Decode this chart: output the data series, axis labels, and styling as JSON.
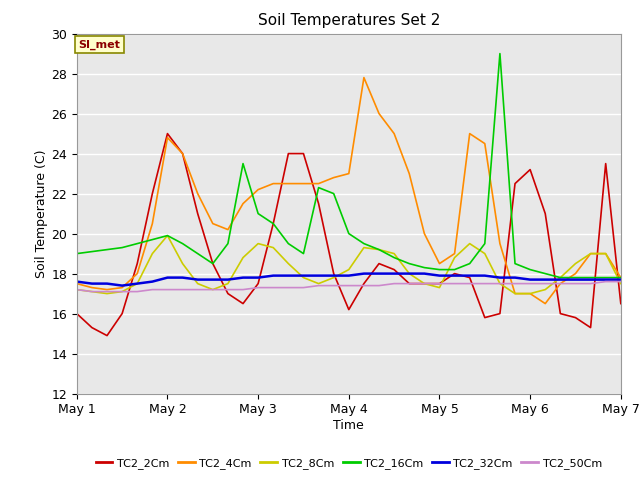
{
  "title": "Soil Temperatures Set 2",
  "xlabel": "Time",
  "ylabel": "Soil Temperature (C)",
  "ylim": [
    12,
    30
  ],
  "yticks": [
    12,
    14,
    16,
    18,
    20,
    22,
    24,
    26,
    28,
    30
  ],
  "xlim": [
    0,
    144
  ],
  "xtick_positions": [
    0,
    24,
    48,
    72,
    96,
    120,
    144
  ],
  "xtick_labels": [
    "May 1",
    "May 2",
    "May 3",
    "May 4",
    "May 5",
    "May 6",
    "May 7"
  ],
  "annotation_text": "SI_met",
  "fig_bg_color": "#ffffff",
  "plot_bg_color": "#e8e8e8",
  "grid_color": "#ffffff",
  "series": {
    "TC2_2Cm": {
      "color": "#cc0000",
      "lw": 1.2,
      "x": [
        0,
        4,
        8,
        12,
        16,
        20,
        24,
        28,
        32,
        36,
        40,
        44,
        48,
        52,
        56,
        60,
        64,
        68,
        72,
        76,
        80,
        84,
        88,
        92,
        96,
        100,
        104,
        108,
        112,
        116,
        120,
        124,
        128,
        132,
        136,
        140,
        144
      ],
      "y": [
        16.0,
        15.3,
        14.9,
        16.0,
        18.5,
        22.0,
        25.0,
        24.0,
        21.0,
        18.5,
        17.0,
        16.5,
        17.5,
        20.5,
        24.0,
        24.0,
        21.5,
        18.0,
        16.2,
        17.5,
        18.5,
        18.2,
        17.5,
        17.5,
        17.5,
        18.0,
        17.8,
        15.8,
        16.0,
        22.5,
        23.2,
        21.0,
        16.0,
        15.8,
        15.3,
        23.5,
        16.5
      ]
    },
    "TC2_4Cm": {
      "color": "#ff8c00",
      "lw": 1.2,
      "x": [
        0,
        4,
        8,
        12,
        16,
        20,
        24,
        28,
        32,
        36,
        40,
        44,
        48,
        52,
        56,
        60,
        64,
        68,
        72,
        76,
        80,
        84,
        88,
        92,
        96,
        100,
        104,
        108,
        112,
        116,
        120,
        124,
        128,
        132,
        136,
        140,
        144
      ],
      "y": [
        17.5,
        17.3,
        17.2,
        17.3,
        18.0,
        20.5,
        24.8,
        24.0,
        22.0,
        20.5,
        20.2,
        21.5,
        22.2,
        22.5,
        22.5,
        22.5,
        22.5,
        22.8,
        23.0,
        27.8,
        26.0,
        25.0,
        23.0,
        20.0,
        18.5,
        19.0,
        25.0,
        24.5,
        19.5,
        17.0,
        17.0,
        16.5,
        17.5,
        18.0,
        19.0,
        19.0,
        17.8
      ]
    },
    "TC2_8Cm": {
      "color": "#cccc00",
      "lw": 1.2,
      "x": [
        0,
        4,
        8,
        12,
        16,
        20,
        24,
        28,
        32,
        36,
        40,
        44,
        48,
        52,
        56,
        60,
        64,
        68,
        72,
        76,
        80,
        84,
        88,
        92,
        96,
        100,
        104,
        108,
        112,
        116,
        120,
        124,
        128,
        132,
        136,
        140,
        144
      ],
      "y": [
        17.2,
        17.1,
        17.0,
        17.1,
        17.5,
        19.0,
        19.9,
        18.5,
        17.5,
        17.2,
        17.5,
        18.8,
        19.5,
        19.3,
        18.5,
        17.8,
        17.5,
        17.8,
        18.2,
        19.3,
        19.2,
        19.0,
        18.0,
        17.5,
        17.3,
        18.8,
        19.5,
        19.0,
        17.5,
        17.0,
        17.0,
        17.2,
        17.8,
        18.5,
        19.0,
        19.0,
        17.5
      ]
    },
    "TC2_16Cm": {
      "color": "#00cc00",
      "lw": 1.2,
      "x": [
        0,
        4,
        8,
        12,
        16,
        20,
        24,
        28,
        32,
        36,
        40,
        44,
        48,
        52,
        56,
        60,
        64,
        68,
        72,
        76,
        80,
        84,
        88,
        92,
        96,
        100,
        104,
        108,
        112,
        116,
        120,
        124,
        128,
        132,
        136,
        140,
        144
      ],
      "y": [
        19.0,
        19.1,
        19.2,
        19.3,
        19.5,
        19.7,
        19.9,
        19.5,
        19.0,
        18.5,
        19.5,
        23.5,
        21.0,
        20.5,
        19.5,
        19.0,
        22.3,
        22.0,
        20.0,
        19.5,
        19.2,
        18.8,
        18.5,
        18.3,
        18.2,
        18.2,
        18.5,
        19.5,
        29.0,
        18.5,
        18.2,
        18.0,
        17.8,
        17.8,
        17.8,
        17.8,
        17.8
      ]
    },
    "TC2_32Cm": {
      "color": "#0000dd",
      "lw": 1.8,
      "x": [
        0,
        4,
        8,
        12,
        16,
        20,
        24,
        28,
        32,
        36,
        40,
        44,
        48,
        52,
        56,
        60,
        64,
        68,
        72,
        76,
        80,
        84,
        88,
        92,
        96,
        100,
        104,
        108,
        112,
        116,
        120,
        124,
        128,
        132,
        136,
        140,
        144
      ],
      "y": [
        17.6,
        17.5,
        17.5,
        17.4,
        17.5,
        17.6,
        17.8,
        17.8,
        17.7,
        17.7,
        17.7,
        17.8,
        17.8,
        17.9,
        17.9,
        17.9,
        17.9,
        17.9,
        17.9,
        18.0,
        18.0,
        18.0,
        18.0,
        18.0,
        17.9,
        17.9,
        17.9,
        17.9,
        17.8,
        17.8,
        17.7,
        17.7,
        17.7,
        17.7,
        17.7,
        17.7,
        17.7
      ]
    },
    "TC2_50Cm": {
      "color": "#cc88cc",
      "lw": 1.2,
      "x": [
        0,
        4,
        8,
        12,
        16,
        20,
        24,
        28,
        32,
        36,
        40,
        44,
        48,
        52,
        56,
        60,
        64,
        68,
        72,
        76,
        80,
        84,
        88,
        92,
        96,
        100,
        104,
        108,
        112,
        116,
        120,
        124,
        128,
        132,
        136,
        140,
        144
      ],
      "y": [
        17.2,
        17.1,
        17.1,
        17.1,
        17.1,
        17.2,
        17.2,
        17.2,
        17.2,
        17.2,
        17.2,
        17.2,
        17.3,
        17.3,
        17.3,
        17.3,
        17.4,
        17.4,
        17.4,
        17.4,
        17.4,
        17.5,
        17.5,
        17.5,
        17.5,
        17.5,
        17.5,
        17.5,
        17.5,
        17.5,
        17.5,
        17.5,
        17.5,
        17.5,
        17.5,
        17.6,
        17.6
      ]
    }
  },
  "legend_labels": [
    "TC2_2Cm",
    "TC2_4Cm",
    "TC2_8Cm",
    "TC2_16Cm",
    "TC2_32Cm",
    "TC2_50Cm"
  ],
  "legend_colors": [
    "#cc0000",
    "#ff8c00",
    "#cccc00",
    "#00cc00",
    "#0000dd",
    "#cc88cc"
  ]
}
